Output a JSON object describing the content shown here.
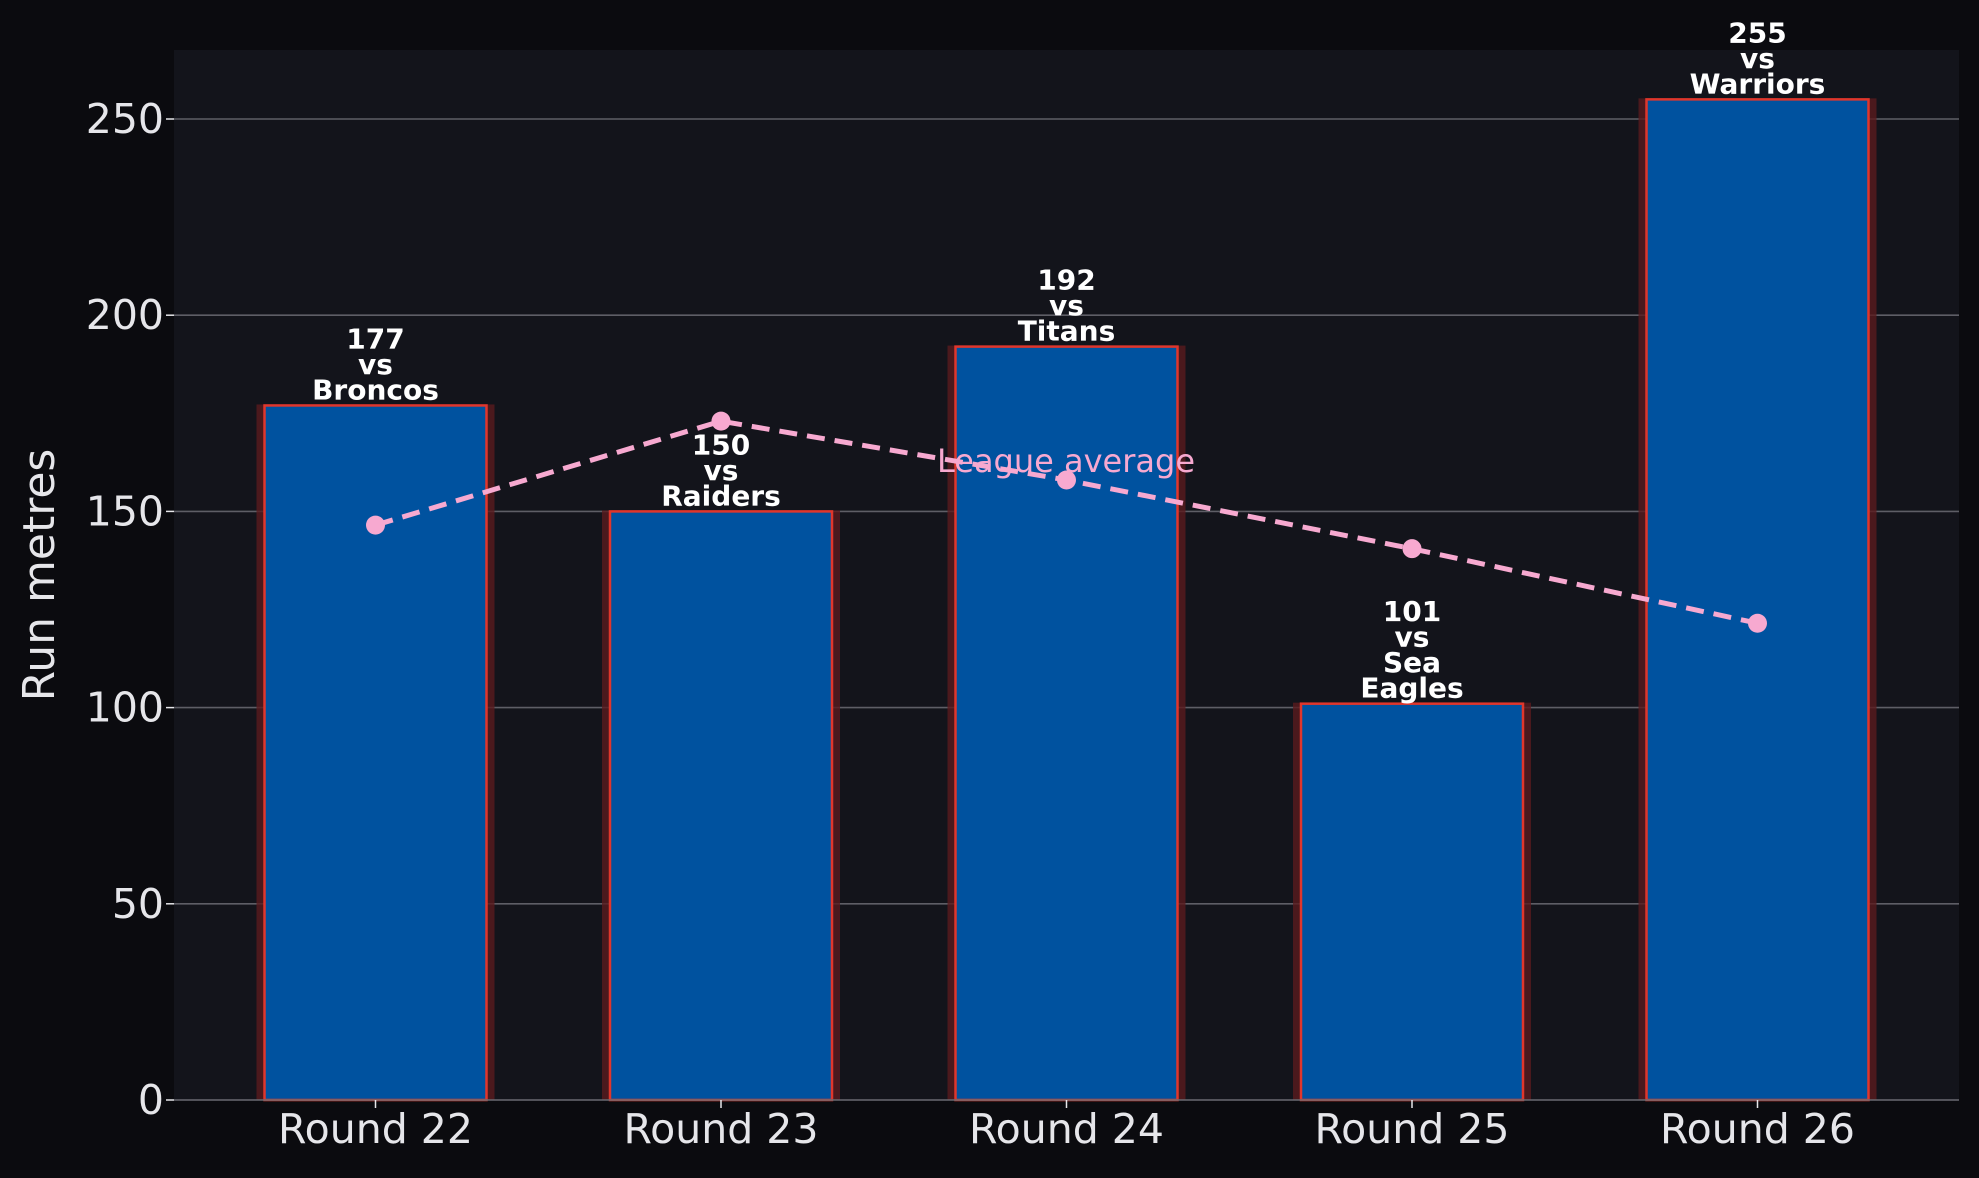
{
  "colors": {
    "background": "#0b0b0f",
    "plot_background": "#13141b",
    "bar_fill": "#00529f",
    "bar_edge": "#e0362c",
    "bar_glow": "#5a1a1e",
    "grid": "#5e5e66",
    "text": "#e6e6ea",
    "label_text": "#ffffff",
    "average_line": "#f7a9d0"
  },
  "chart_data": {
    "type": "bar",
    "title": "",
    "xlabel": "",
    "ylabel": "Run metres",
    "ylim": [
      0,
      268
    ],
    "yticks": [
      0,
      50,
      100,
      150,
      200,
      250
    ],
    "grid": true,
    "categories": [
      "Round 22",
      "Round 23",
      "Round 24",
      "Round 25",
      "Round 26"
    ],
    "series": [
      {
        "values": [
          177,
          150,
          192,
          101,
          255
        ],
        "labels": [
          [
            "177",
            "vs",
            "Broncos"
          ],
          [
            "150",
            "vs",
            "Raiders"
          ],
          [
            "192",
            "vs",
            "Titans"
          ],
          [
            "101",
            "vs",
            "Sea",
            "Eagles"
          ],
          [
            "255",
            "vs",
            "Warriors"
          ]
        ]
      },
      {
        "name": "League average",
        "type": "line",
        "style": "dashed",
        "values": [
          146.5,
          173,
          158,
          140.5,
          121.5
        ]
      }
    ]
  }
}
